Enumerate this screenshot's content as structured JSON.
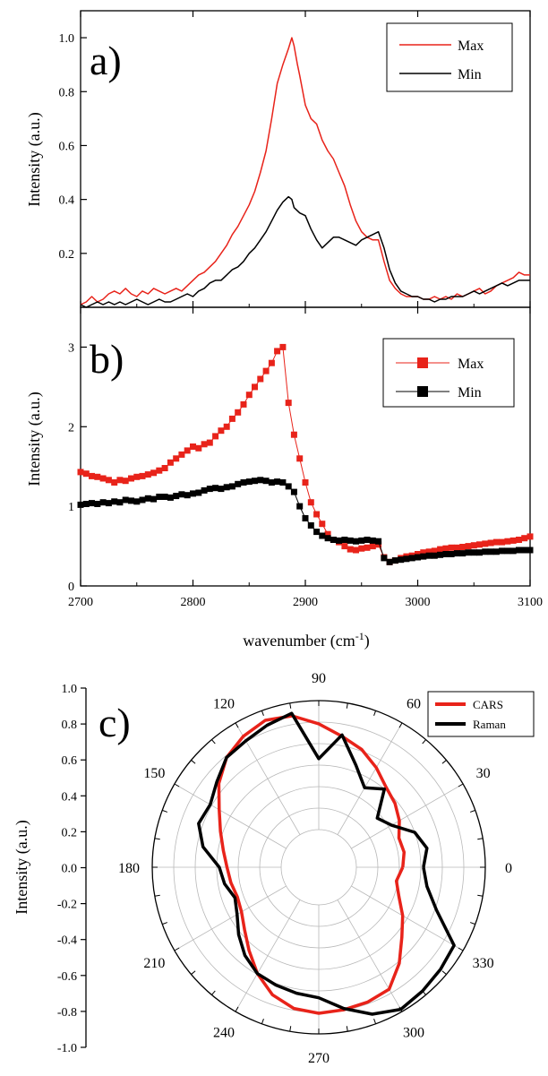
{
  "chart_data": [
    {
      "type": "line",
      "panel_label": "a)",
      "ylabel": "Intensity (a.u.)",
      "xlim": [
        2700,
        3100
      ],
      "ylim": [
        0,
        1.1
      ],
      "yticks": [
        "0.2",
        "0.4",
        "0.6",
        "0.8",
        "1.0"
      ],
      "legend": "top-right",
      "colors": {
        "Max": "#e8231a",
        "Min": "#000000"
      },
      "series": [
        {
          "name": "Max",
          "x": [
            2700,
            2705,
            2710,
            2715,
            2720,
            2725,
            2730,
            2735,
            2740,
            2745,
            2750,
            2755,
            2760,
            2765,
            2770,
            2775,
            2780,
            2785,
            2790,
            2795,
            2800,
            2805,
            2810,
            2815,
            2820,
            2825,
            2830,
            2835,
            2840,
            2845,
            2850,
            2855,
            2860,
            2865,
            2870,
            2875,
            2880,
            2885,
            2888,
            2890,
            2893,
            2895,
            2900,
            2905,
            2910,
            2915,
            2920,
            2925,
            2930,
            2935,
            2940,
            2945,
            2950,
            2955,
            2960,
            2965,
            2970,
            2975,
            2980,
            2985,
            2990,
            2995,
            3000,
            3005,
            3010,
            3015,
            3020,
            3025,
            3030,
            3035,
            3040,
            3045,
            3050,
            3055,
            3060,
            3065,
            3070,
            3075,
            3080,
            3085,
            3090,
            3095,
            3100
          ],
          "values": [
            0.01,
            0.02,
            0.04,
            0.02,
            0.03,
            0.05,
            0.06,
            0.05,
            0.07,
            0.05,
            0.04,
            0.06,
            0.05,
            0.07,
            0.06,
            0.05,
            0.06,
            0.07,
            0.06,
            0.08,
            0.1,
            0.12,
            0.13,
            0.15,
            0.17,
            0.2,
            0.23,
            0.27,
            0.3,
            0.34,
            0.38,
            0.43,
            0.5,
            0.58,
            0.7,
            0.83,
            0.9,
            0.96,
            1.0,
            0.97,
            0.9,
            0.86,
            0.75,
            0.7,
            0.68,
            0.62,
            0.58,
            0.55,
            0.5,
            0.45,
            0.38,
            0.32,
            0.28,
            0.26,
            0.25,
            0.25,
            0.17,
            0.1,
            0.07,
            0.05,
            0.04,
            0.04,
            0.04,
            0.03,
            0.03,
            0.04,
            0.03,
            0.04,
            0.03,
            0.05,
            0.04,
            0.05,
            0.06,
            0.07,
            0.05,
            0.06,
            0.08,
            0.09,
            0.1,
            0.11,
            0.13,
            0.12,
            0.12
          ]
        },
        {
          "name": "Min",
          "x": [
            2700,
            2705,
            2710,
            2715,
            2720,
            2725,
            2730,
            2735,
            2740,
            2745,
            2750,
            2755,
            2760,
            2765,
            2770,
            2775,
            2780,
            2785,
            2790,
            2795,
            2800,
            2805,
            2810,
            2815,
            2820,
            2825,
            2830,
            2835,
            2840,
            2845,
            2850,
            2855,
            2860,
            2865,
            2870,
            2875,
            2880,
            2885,
            2888,
            2890,
            2895,
            2900,
            2905,
            2910,
            2915,
            2920,
            2925,
            2930,
            2935,
            2940,
            2945,
            2950,
            2955,
            2960,
            2965,
            2970,
            2975,
            2980,
            2985,
            2990,
            2995,
            3000,
            3005,
            3010,
            3015,
            3020,
            3025,
            3030,
            3035,
            3040,
            3045,
            3050,
            3055,
            3060,
            3065,
            3070,
            3075,
            3080,
            3085,
            3090,
            3095,
            3100
          ],
          "values": [
            0.01,
            0.0,
            0.01,
            0.02,
            0.01,
            0.02,
            0.01,
            0.02,
            0.01,
            0.02,
            0.03,
            0.02,
            0.01,
            0.02,
            0.03,
            0.02,
            0.02,
            0.03,
            0.04,
            0.05,
            0.04,
            0.06,
            0.07,
            0.09,
            0.1,
            0.1,
            0.12,
            0.14,
            0.15,
            0.17,
            0.2,
            0.22,
            0.25,
            0.28,
            0.32,
            0.36,
            0.39,
            0.41,
            0.4,
            0.37,
            0.35,
            0.34,
            0.29,
            0.25,
            0.22,
            0.24,
            0.26,
            0.26,
            0.25,
            0.24,
            0.23,
            0.25,
            0.26,
            0.27,
            0.28,
            0.22,
            0.14,
            0.09,
            0.06,
            0.05,
            0.04,
            0.04,
            0.03,
            0.03,
            0.02,
            0.03,
            0.03,
            0.04,
            0.04,
            0.04,
            0.05,
            0.06,
            0.05,
            0.06,
            0.07,
            0.08,
            0.09,
            0.08,
            0.09,
            0.1,
            0.1,
            0.1
          ]
        }
      ]
    },
    {
      "type": "line",
      "panel_label": "b)",
      "xlabel": "wavenumber (cm",
      "xlabel_superscript": "-1",
      "xlabel_close": ")",
      "ylabel": "Intensity (a.u.)",
      "xlim": [
        2700,
        3100
      ],
      "ylim": [
        0,
        3.5
      ],
      "xticks": [
        "2700",
        "2800",
        "2900",
        "3000",
        "3100"
      ],
      "yticks": [
        "0",
        "1",
        "2",
        "3"
      ],
      "legend": "top-right",
      "colors": {
        "Max": "#e8231a",
        "Min": "#000000"
      },
      "series": [
        {
          "name": "Max",
          "x": [
            2700,
            2705,
            2710,
            2715,
            2720,
            2725,
            2730,
            2735,
            2740,
            2745,
            2750,
            2755,
            2760,
            2765,
            2770,
            2775,
            2780,
            2785,
            2790,
            2795,
            2800,
            2805,
            2810,
            2815,
            2820,
            2825,
            2830,
            2835,
            2840,
            2845,
            2850,
            2855,
            2860,
            2865,
            2870,
            2875,
            2880,
            2885,
            2890,
            2895,
            2900,
            2905,
            2910,
            2915,
            2920,
            2925,
            2930,
            2935,
            2940,
            2945,
            2950,
            2955,
            2960,
            2965,
            2970,
            2975,
            2980,
            2985,
            2990,
            2995,
            3000,
            3005,
            3010,
            3015,
            3020,
            3025,
            3030,
            3035,
            3040,
            3045,
            3050,
            3055,
            3060,
            3065,
            3070,
            3075,
            3080,
            3085,
            3090,
            3095,
            3100
          ],
          "values": [
            1.43,
            1.41,
            1.38,
            1.37,
            1.35,
            1.33,
            1.3,
            1.33,
            1.32,
            1.35,
            1.37,
            1.38,
            1.4,
            1.42,
            1.45,
            1.48,
            1.55,
            1.6,
            1.65,
            1.7,
            1.75,
            1.73,
            1.78,
            1.8,
            1.88,
            1.95,
            2.0,
            2.1,
            2.18,
            2.28,
            2.4,
            2.5,
            2.6,
            2.7,
            2.8,
            2.95,
            3.0,
            2.3,
            1.9,
            1.6,
            1.3,
            1.05,
            0.9,
            0.78,
            0.65,
            0.58,
            0.55,
            0.5,
            0.46,
            0.45,
            0.47,
            0.48,
            0.5,
            0.52,
            0.36,
            0.3,
            0.32,
            0.35,
            0.37,
            0.38,
            0.4,
            0.42,
            0.43,
            0.44,
            0.46,
            0.47,
            0.48,
            0.48,
            0.49,
            0.5,
            0.51,
            0.52,
            0.53,
            0.54,
            0.55,
            0.55,
            0.56,
            0.57,
            0.58,
            0.6,
            0.62
          ]
        },
        {
          "name": "Min",
          "x": [
            2700,
            2705,
            2710,
            2715,
            2720,
            2725,
            2730,
            2735,
            2740,
            2745,
            2750,
            2755,
            2760,
            2765,
            2770,
            2775,
            2780,
            2785,
            2790,
            2795,
            2800,
            2805,
            2810,
            2815,
            2820,
            2825,
            2830,
            2835,
            2840,
            2845,
            2850,
            2855,
            2860,
            2865,
            2870,
            2875,
            2880,
            2885,
            2890,
            2895,
            2900,
            2905,
            2910,
            2915,
            2920,
            2925,
            2930,
            2935,
            2940,
            2945,
            2950,
            2955,
            2960,
            2965,
            2970,
            2975,
            2980,
            2985,
            2990,
            2995,
            3000,
            3005,
            3010,
            3015,
            3020,
            3025,
            3030,
            3035,
            3040,
            3045,
            3050,
            3055,
            3060,
            3065,
            3070,
            3075,
            3080,
            3085,
            3090,
            3095,
            3100
          ],
          "values": [
            1.02,
            1.03,
            1.04,
            1.03,
            1.05,
            1.04,
            1.06,
            1.05,
            1.08,
            1.07,
            1.06,
            1.08,
            1.1,
            1.09,
            1.12,
            1.12,
            1.11,
            1.13,
            1.15,
            1.14,
            1.16,
            1.17,
            1.2,
            1.22,
            1.23,
            1.22,
            1.24,
            1.25,
            1.28,
            1.3,
            1.31,
            1.32,
            1.33,
            1.32,
            1.3,
            1.31,
            1.3,
            1.25,
            1.18,
            1.0,
            0.85,
            0.76,
            0.68,
            0.63,
            0.6,
            0.58,
            0.57,
            0.58,
            0.57,
            0.56,
            0.57,
            0.58,
            0.57,
            0.56,
            0.35,
            0.3,
            0.32,
            0.33,
            0.34,
            0.35,
            0.36,
            0.37,
            0.38,
            0.38,
            0.39,
            0.4,
            0.4,
            0.41,
            0.41,
            0.42,
            0.42,
            0.42,
            0.43,
            0.43,
            0.43,
            0.44,
            0.44,
            0.44,
            0.45,
            0.45,
            0.45
          ]
        }
      ]
    },
    {
      "type": "polar",
      "panel_label": "c)",
      "ylabel": "Intensity (a.u.)",
      "ylim": [
        -1.0,
        1.0
      ],
      "yticks": [
        "1.0",
        "0.8",
        "0.6",
        "0.4",
        "0.2",
        "0.0",
        "-0.2",
        "-0.4",
        "-0.6",
        "-0.8",
        "-1.0"
      ],
      "angle_labels": [
        "0",
        "30",
        "60",
        "90",
        "120",
        "150",
        "180",
        "210",
        "240",
        "270",
        "300",
        "330"
      ],
      "legend": "top-right",
      "colors": {
        "CARS": "#e8231a",
        "Raman": "#000000"
      },
      "series": [
        {
          "name": "CARS",
          "theta": [
            0,
            10,
            20,
            30,
            40,
            50,
            60,
            70,
            80,
            90,
            100,
            110,
            120,
            130,
            140,
            150,
            160,
            170,
            180,
            190,
            200,
            210,
            220,
            230,
            240,
            250,
            260,
            270,
            280,
            290,
            300,
            310,
            320,
            330,
            340,
            350,
            360
          ],
          "r": [
            0.36,
            0.38,
            0.37,
            0.43,
            0.48,
            0.52,
            0.6,
            0.68,
            0.74,
            0.82,
            0.9,
            0.92,
            0.88,
            0.82,
            0.72,
            0.6,
            0.52,
            0.46,
            0.42,
            0.4,
            0.38,
            0.4,
            0.46,
            0.55,
            0.66,
            0.76,
            0.82,
            0.84,
            0.83,
            0.82,
            0.8,
            0.68,
            0.55,
            0.46,
            0.37,
            0.32,
            0.36
          ]
        },
        {
          "name": "Raman",
          "theta": [
            0,
            10,
            20,
            30,
            40,
            50,
            60,
            70,
            80,
            90,
            100,
            110,
            120,
            130,
            140,
            150,
            160,
            170,
            180,
            190,
            200,
            210,
            220,
            230,
            240,
            250,
            260,
            270,
            280,
            290,
            300,
            310,
            320,
            330,
            340,
            350,
            360
          ],
          "r": [
            0.52,
            0.56,
            0.5,
            0.36,
            0.3,
            0.5,
            0.42,
            0.55,
            0.75,
            0.55,
            0.92,
            0.88,
            0.84,
            0.82,
            0.74,
            0.68,
            0.7,
            0.62,
            0.48,
            0.45,
            0.4,
            0.44,
            0.52,
            0.6,
            0.66,
            0.68,
            0.7,
            0.72,
            0.82,
            0.92,
            0.98,
            0.96,
            0.94,
            0.92,
            0.68,
            0.56,
            0.52
          ]
        }
      ]
    }
  ]
}
